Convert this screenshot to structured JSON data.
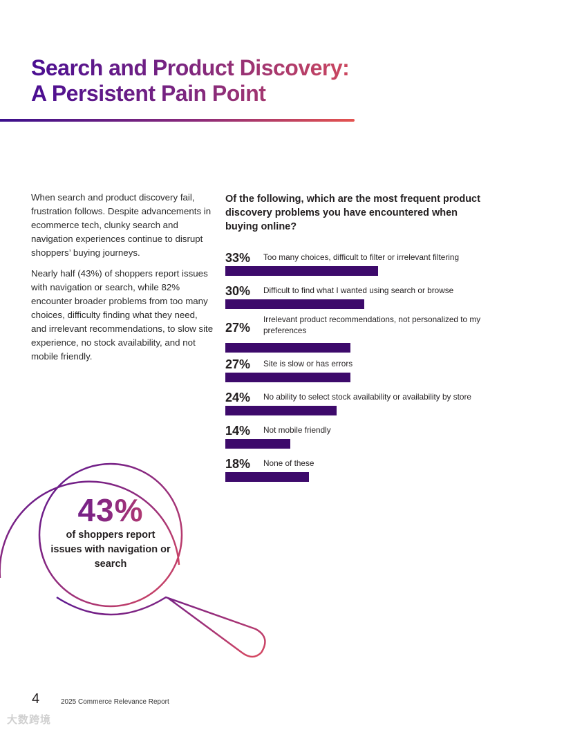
{
  "page": {
    "title_line1": "Search and Product Discovery:",
    "title_line2": "A Persistent Pain Point"
  },
  "intro": {
    "paragraph1": "When search and product discovery fail, frustration follows. Despite advancements in ecommerce tech, clunky search and navigation experiences continue to disrupt shoppers’ buying journeys.",
    "paragraph2": "Nearly half (43%) of shoppers report issues with navigation or search, while 82% encounter broader problems from too many choices, difficulty finding what they need, and irrelevant recommendations, to slow site experience, no stock availability, and not mobile friendly."
  },
  "survey": {
    "question": "Of the following, which are the most frequent product discovery problems you have encountered when buying online?"
  },
  "chart_data": {
    "type": "bar",
    "orientation": "horizontal",
    "title": "Of the following, which are the most frequent product discovery problems you have encountered when buying online?",
    "unit": "%",
    "xlim": [
      0,
      100
    ],
    "categories": [
      "Too many choices, difficult to filter or irrelevant filtering",
      "Difficult to find what I wanted using search or browse",
      "Irrelevant product recommendations, not personalized to my preferences",
      "Site is slow or has errors",
      "No ability to select stock availability or availability by store",
      "Not mobile friendly",
      "None of these"
    ],
    "values": [
      33,
      30,
      27,
      27,
      24,
      14,
      18
    ],
    "value_labels": [
      "33%",
      "30%",
      "27%",
      "27%",
      "24%",
      "14%",
      "18%"
    ],
    "bar_color": "#3d0a6b"
  },
  "callout": {
    "stat": "43%",
    "text": "of shoppers report issues with navigation or search"
  },
  "footer": {
    "page_number": "4",
    "report_title": "2025 Commerce Relevance Report"
  },
  "watermark": {
    "text": "大数跨境"
  },
  "colors": {
    "gradient_start": "#4a0e92",
    "gradient_end": "#d34a5c",
    "bar": "#3d0a6b"
  }
}
